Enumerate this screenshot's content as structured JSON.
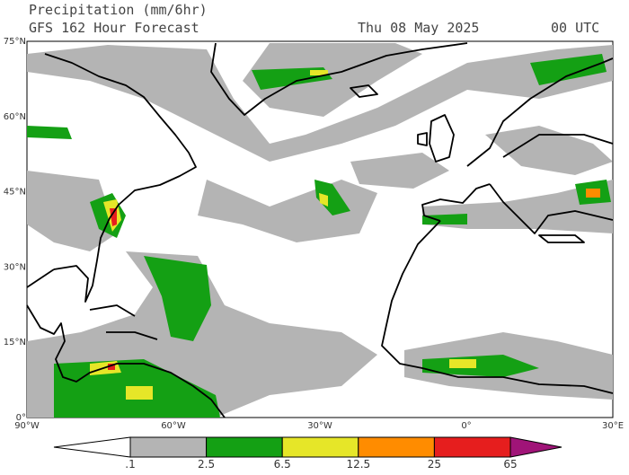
{
  "header": {
    "title": "Precipitation (mm/6hr)",
    "subtitle": "GFS 162 Hour Forecast",
    "date": "Thu 08 May 2025",
    "time": "00 UTC"
  },
  "map": {
    "lat_labels": [
      "75°N",
      "60°N",
      "45°N",
      "30°N",
      "15°N",
      "0°"
    ],
    "lon_labels": [
      "90°W",
      "60°W",
      "30°W",
      "0°",
      "30°E"
    ]
  },
  "legend": {
    "levels": [
      ".1",
      "2.5",
      "6.5",
      "12.5",
      "25",
      "65"
    ],
    "colors": [
      "#ffffff",
      "#b4b4b4",
      "#14a014",
      "#e6e628",
      "#ff8c00",
      "#e61e1e",
      "#a01478"
    ]
  }
}
